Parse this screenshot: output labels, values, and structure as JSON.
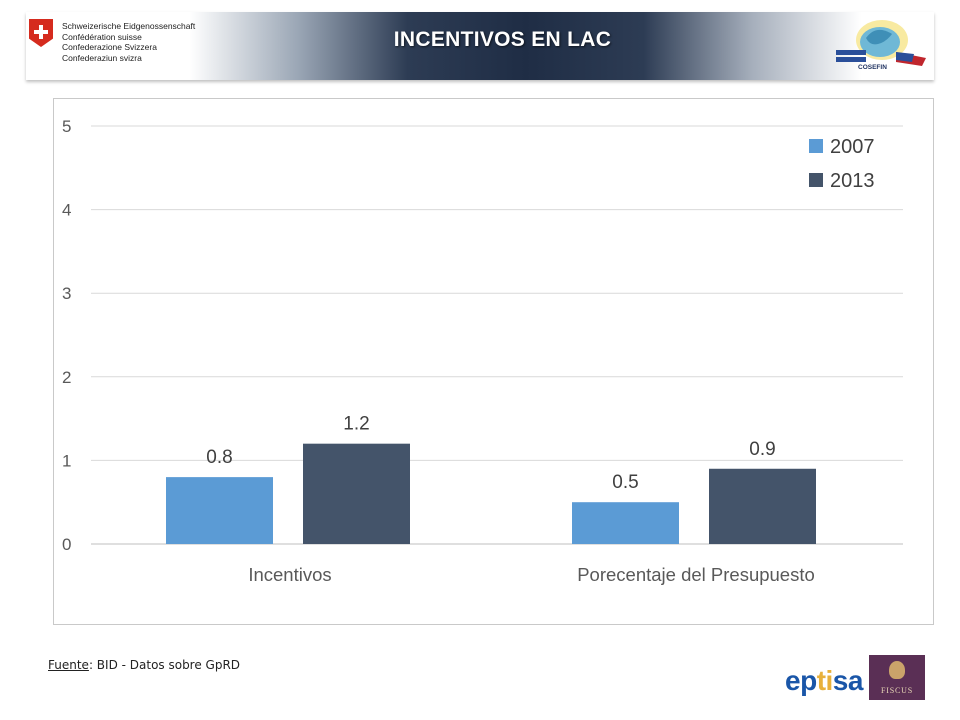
{
  "header": {
    "title": "INCENTIVOS  EN LAC",
    "confederation_lines": [
      "Schweizerische Eidgenossenschaft",
      "Confédération suisse",
      "Confederazione Svizzera",
      "Confederaziun svizra"
    ],
    "partner_logo_text": "COSEFIN"
  },
  "chart_data": {
    "type": "bar",
    "categories": [
      "Incentivos",
      "Porecentaje del Presupuesto"
    ],
    "series": [
      {
        "name": "2007",
        "values": [
          0.8,
          0.5
        ],
        "color": "#5b9bd5"
      },
      {
        "name": "2013",
        "values": [
          1.2,
          0.9
        ],
        "color": "#44546a"
      }
    ],
    "data_labels": [
      [
        "0.8",
        "0.5"
      ],
      [
        "1.2",
        "0.9"
      ]
    ],
    "yticks": [
      "0",
      "1",
      "2",
      "3",
      "4",
      "5"
    ],
    "ylim": [
      0,
      5
    ],
    "grid": true,
    "legend_position": "top-right"
  },
  "footer": {
    "source_label": "Fuente",
    "source_text": ": BID - Datos sobre GpRD",
    "eptisa_prefix": "ep",
    "eptisa_mid": "ti",
    "eptisa_suffix": "sa",
    "fiscus_label": "FISCUS"
  }
}
